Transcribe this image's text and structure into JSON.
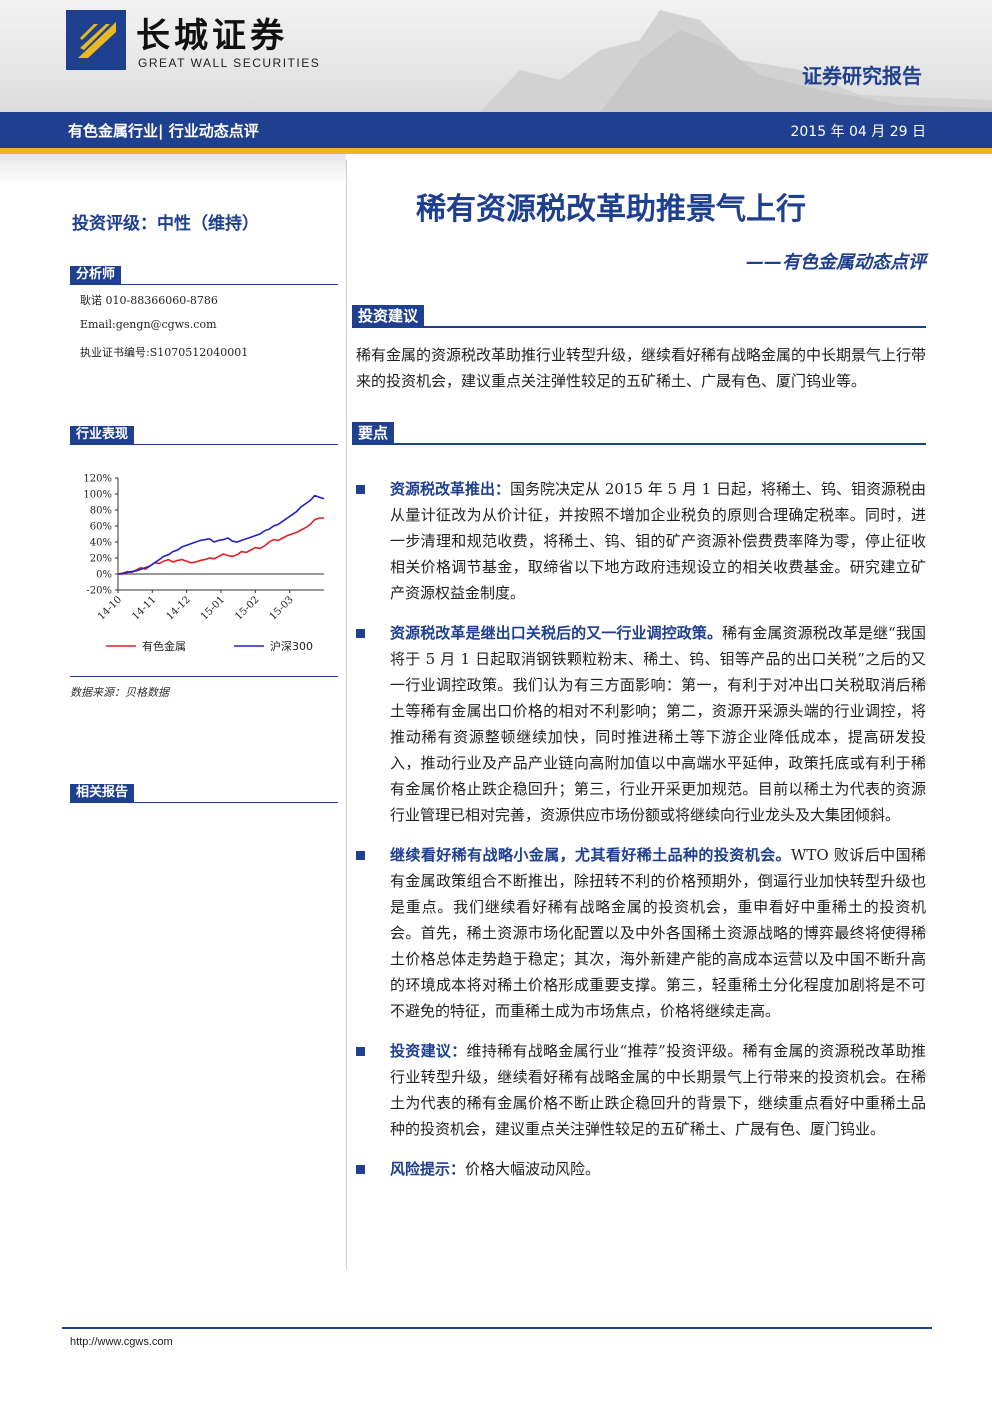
{
  "header": {
    "logo_cn": "长城证券",
    "logo_en": "GREAT WALL SECURITIES",
    "report_type": "证券研究报告"
  },
  "nav": {
    "category": "有色金属行业| 行业动态点评",
    "date": "2015 年 04 月 29 日"
  },
  "sidebar": {
    "rating": "投资评级：中性（维持）",
    "analyst_tag": "分析师",
    "analyst_lines": [
      "耿诺 010-88366060-8786",
      "Email:gengn@cgws.com",
      "执业证书编号:S1070512040001"
    ],
    "performance_tag": "行业表现",
    "source_note": "数据来源：贝格数据",
    "related_tag": "相关报告"
  },
  "chart_data": {
    "type": "line",
    "x_ticks": [
      "14-10",
      "14-11",
      "14-12",
      "15-01",
      "15-02",
      "15-03"
    ],
    "y_ticks": [
      "120%",
      "100%",
      "80%",
      "60%",
      "40%",
      "20%",
      "0%",
      "-20%"
    ],
    "ylim": [
      -20,
      120
    ],
    "series": [
      {
        "name": "有色金属",
        "color": "#e02020",
        "values": [
          0,
          1,
          3,
          2,
          5,
          8,
          6,
          10,
          14,
          13,
          16,
          18,
          15,
          17,
          18,
          16,
          14,
          15,
          17,
          18,
          20,
          19,
          22,
          25,
          23,
          22,
          24,
          28,
          27,
          30,
          33,
          32,
          35,
          40,
          43,
          42,
          45,
          48,
          50,
          52,
          55,
          58,
          62,
          68,
          70,
          70
        ]
      },
      {
        "name": "沪深300",
        "color": "#2020c0",
        "values": [
          0,
          0,
          2,
          3,
          4,
          6,
          8,
          10,
          14,
          18,
          22,
          24,
          28,
          30,
          34,
          36,
          38,
          40,
          42,
          43,
          44,
          40,
          42,
          43,
          45,
          41,
          40,
          42,
          44,
          46,
          48,
          50,
          54,
          56,
          60,
          62,
          66,
          70,
          74,
          78,
          84,
          88,
          92,
          98,
          96,
          94
        ]
      }
    ]
  },
  "main": {
    "title": "稀有资源税改革助推景气上行",
    "subtitle": "——有色金属动态点评",
    "advice_tag": "投资建议",
    "summary": "稀有金属的资源税改革助推行业转型升级，继续看好稀有战略金属的中长期景气上行带来的投资机会，建议重点关注弹性较足的五矿稀土、广晟有色、厦门钨业等。",
    "points_tag": "要点",
    "bullets": [
      {
        "lead": "资源税改革推出：",
        "text": "国务院决定从 2015 年 5 月 1 日起，将稀土、钨、钼资源税由从量计征改为从价计征，并按照不增加企业税负的原则合理确定税率。同时，进一步清理和规范收费，将稀土、钨、钼的矿产资源补偿费费率降为零，停止征收相关价格调节基金，取缔省以下地方政府违规设立的相关收费基金。研究建立矿产资源权益金制度。"
      },
      {
        "lead": "资源税改革是继出口关税后的又一行业调控政策。",
        "text": "稀有金属资源税改革是继“我国将于 5 月 1 日起取消钢铁颗粒粉末、稀土、钨、钼等产品的出口关税”之后的又一行业调控政策。我们认为有三方面影响：第一，有利于对冲出口关税取消后稀土等稀有金属出口价格的相对不利影响；第二，资源开采源头端的行业调控，将推动稀有资源整顿继续加快，同时推进稀土等下游企业降低成本，提高研发投入，推动行业及产品产业链向高附加值以中高端水平延伸，政策托底或有利于稀有金属价格止跌企稳回升；第三，行业开采更加规范。目前以稀土为代表的资源行业管理已相对完善，资源供应市场份额或将继续向行业龙头及大集团倾斜。"
      },
      {
        "lead": "继续看好稀有战略小金属，尤其看好稀土品种的投资机会。",
        "text": "WTO 败诉后中国稀有金属政策组合不断推出，除扭转不利的价格预期外，倒逼行业加快转型升级也是重点。我们继续看好稀有战略金属的投资机会，重申看好中重稀土的投资机会。首先，稀土资源市场化配置以及中外各国稀土资源战略的博弈最终将使得稀土价格总体走势趋于稳定；其次，海外新建产能的高成本运营以及中国不断升高的环境成本将对稀土价格形成重要支撑。第三，轻重稀土分化程度加剧将是不可不避免的特征，而重稀土成为市场焦点，价格将继续走高。"
      },
      {
        "lead": "投资建议：",
        "text": "维持稀有战略金属行业“推荐”投资评级。稀有金属的资源税改革助推行业转型升级，继续看好稀有战略金属的中长期景气上行带来的投资机会。在稀土为代表的稀有金属价格不断止跌企稳回升的背景下，继续重点看好中重稀土品种的投资机会，建议重点关注弹性较足的五矿稀土、广晟有色、厦门钨业。"
      },
      {
        "lead": "风险提示：",
        "text": "价格大幅波动风险。"
      }
    ]
  },
  "footer": {
    "url": "http://www.cgws.com"
  }
}
